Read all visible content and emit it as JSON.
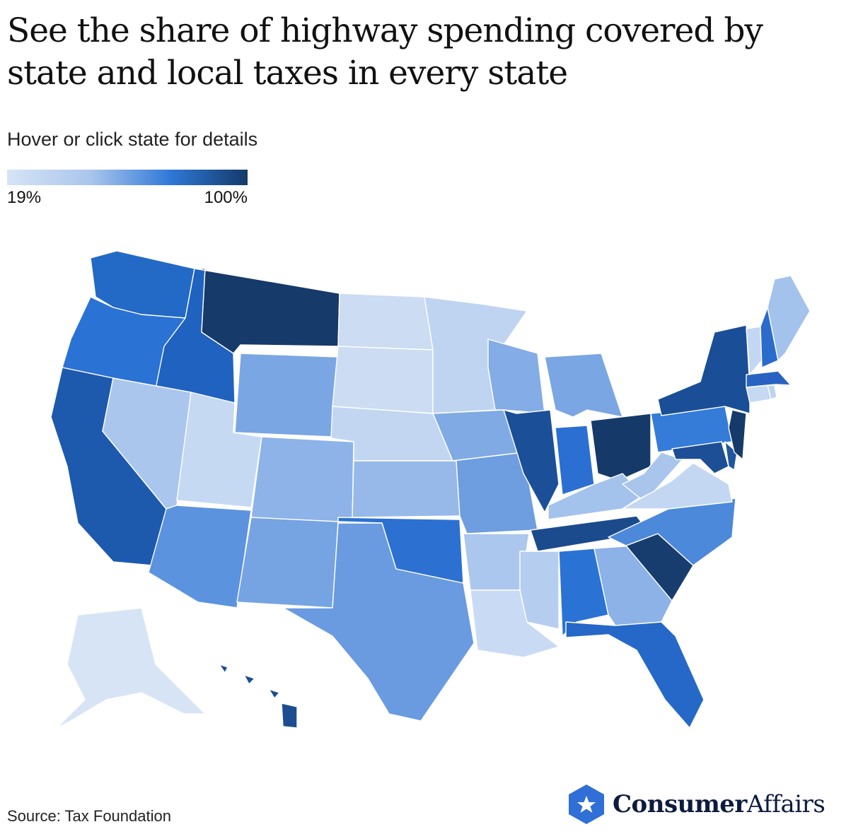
{
  "title": "See the share of highway spending covered by state and local taxes in every state",
  "subtitle": "Hover or click state for details",
  "legend": {
    "min_label": "19%",
    "max_label": "100%",
    "min_color": "#d6e4f6",
    "max_color": "#143a69"
  },
  "source": "Source: Tax Foundation",
  "brand": {
    "name_bold": "Consumer",
    "name_regular": "Affairs",
    "logo_icon": "star-hexagon-icon",
    "logo_color": "#2f6fd6"
  },
  "chart_data": {
    "type": "choropleth",
    "scale": {
      "min_label": "19%",
      "max_label": "100%"
    },
    "states": [
      {
        "state": "Washington",
        "color": "#2369c6"
      },
      {
        "state": "Oregon",
        "color": "#2a72d4"
      },
      {
        "state": "California",
        "color": "#1d5aae"
      },
      {
        "state": "Idaho",
        "color": "#2062bf"
      },
      {
        "state": "Nevada",
        "color": "#aac6ed"
      },
      {
        "state": "Montana",
        "color": "#163a69"
      },
      {
        "state": "Wyoming",
        "color": "#7aa6e3"
      },
      {
        "state": "Utah",
        "color": "#c6d9f3"
      },
      {
        "state": "Arizona",
        "color": "#5b93de"
      },
      {
        "state": "Colorado",
        "color": "#8db3e8"
      },
      {
        "state": "New Mexico",
        "color": "#76a3e2"
      },
      {
        "state": "North Dakota",
        "color": "#cbdcf3"
      },
      {
        "state": "South Dakota",
        "color": "#cbdcf3"
      },
      {
        "state": "Nebraska",
        "color": "#c2d6f1"
      },
      {
        "state": "Kansas",
        "color": "#96b9ea"
      },
      {
        "state": "Oklahoma",
        "color": "#2c71d2"
      },
      {
        "state": "Texas",
        "color": "#6a9be0"
      },
      {
        "state": "Minnesota",
        "color": "#bed4f1"
      },
      {
        "state": "Iowa",
        "color": "#80aae4"
      },
      {
        "state": "Missouri",
        "color": "#6e9de0"
      },
      {
        "state": "Arkansas",
        "color": "#abc7ed"
      },
      {
        "state": "Louisiana",
        "color": "#c9dbf4"
      },
      {
        "state": "Wisconsin",
        "color": "#84ace6"
      },
      {
        "state": "Illinois",
        "color": "#1b4f98"
      },
      {
        "state": "Michigan",
        "color": "#7aa6e3"
      },
      {
        "state": "Indiana",
        "color": "#2b6fd2"
      },
      {
        "state": "Ohio",
        "color": "#153a6a"
      },
      {
        "state": "Kentucky",
        "color": "#a3c2ec"
      },
      {
        "state": "Tennessee",
        "color": "#1b4b8c"
      },
      {
        "state": "Mississippi",
        "color": "#b5cdef"
      },
      {
        "state": "Alabama",
        "color": "#2a73d4"
      },
      {
        "state": "Georgia",
        "color": "#8cb2e8"
      },
      {
        "state": "Florida",
        "color": "#2568c8"
      },
      {
        "state": "South Carolina",
        "color": "#173d6e"
      },
      {
        "state": "North Carolina",
        "color": "#4c89db"
      },
      {
        "state": "Virginia",
        "color": "#c4d7f2"
      },
      {
        "state": "West Virginia",
        "color": "#a9c5ec"
      },
      {
        "state": "Pennsylvania",
        "color": "#347cd7"
      },
      {
        "state": "New York",
        "color": "#1a4e96"
      },
      {
        "state": "Maryland",
        "color": "#1c4f95"
      },
      {
        "state": "Delaware",
        "color": "#1f579e"
      },
      {
        "state": "New Jersey",
        "color": "#163a69"
      },
      {
        "state": "Connecticut",
        "color": "#c6d9f3"
      },
      {
        "state": "Rhode Island",
        "color": "#bed4f1"
      },
      {
        "state": "Massachusetts",
        "color": "#2863c2"
      },
      {
        "state": "Vermont",
        "color": "#c4d7f2"
      },
      {
        "state": "New Hampshire",
        "color": "#2a6bcb"
      },
      {
        "state": "Maine",
        "color": "#a3c2ec"
      },
      {
        "state": "Alaska",
        "color": "#d6e4f6"
      },
      {
        "state": "Hawaii",
        "color": "#1b4d90"
      }
    ]
  }
}
